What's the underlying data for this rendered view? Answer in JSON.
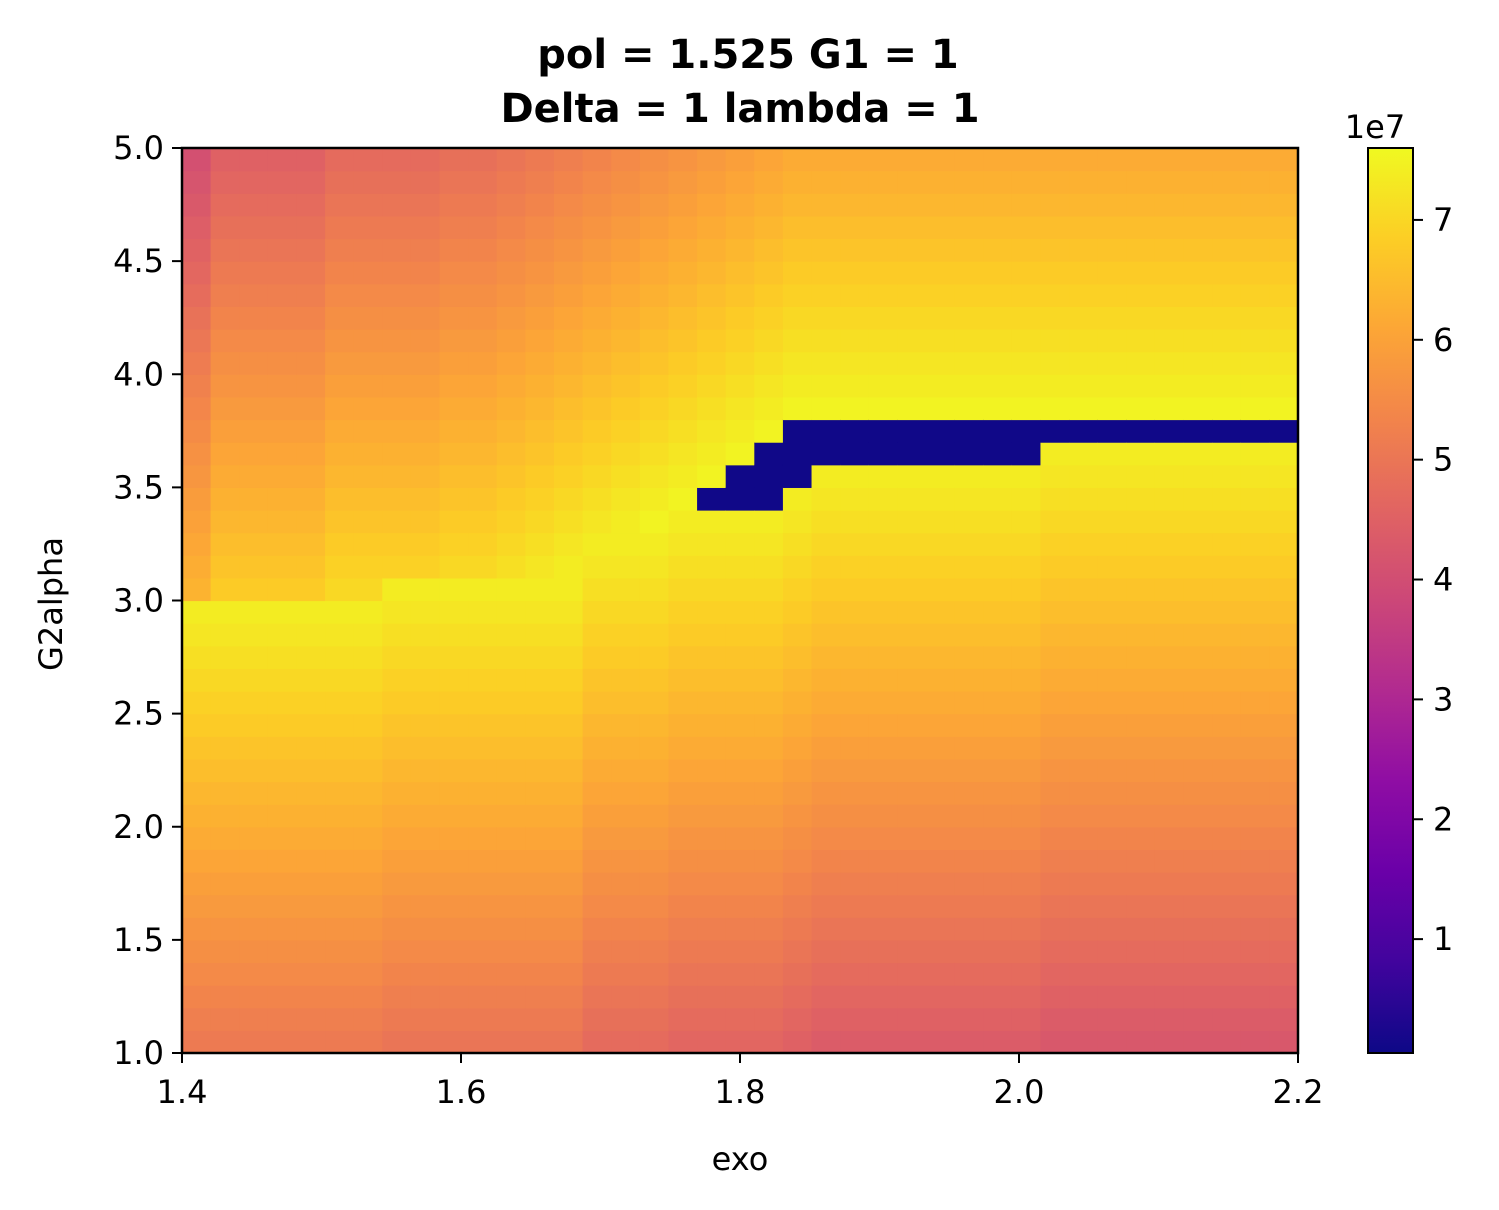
{
  "chart_data": {
    "type": "heatmap",
    "title_lines": [
      "pol = 1.525 G1 = 1",
      "Delta = 1 lambda = 1"
    ],
    "xlabel": "exo",
    "ylabel": "G2alpha",
    "xlim": [
      1.4,
      2.2
    ],
    "ylim": [
      1.0,
      5.0
    ],
    "x_ticks": [
      "1.4",
      "1.6",
      "1.8",
      "2.0",
      "2.2"
    ],
    "y_ticks": [
      "1.0",
      "1.5",
      "2.0",
      "2.5",
      "3.0",
      "3.5",
      "4.0",
      "4.5",
      "5.0"
    ],
    "colorbar": {
      "colormap": "plasma",
      "range": [
        0.05,
        7.6
      ],
      "ticks": [
        "1",
        "2",
        "3",
        "4",
        "5",
        "6",
        "7"
      ],
      "offset_label": "1e7"
    },
    "grid": false,
    "grid_shape": {
      "cols": 39,
      "rows": 40
    },
    "region_boundaries": {
      "bottom_band_top_by_column": [
        20,
        20,
        20,
        20,
        20,
        20,
        20,
        21,
        21,
        21,
        21,
        21,
        21,
        21,
        21,
        21,
        21,
        21,
        21,
        21,
        21,
        21,
        21,
        22,
        22,
        22,
        22,
        22,
        22,
        22,
        22,
        22,
        22,
        22,
        22,
        22,
        22,
        22,
        22
      ],
      "upper_wedge_bottom_by_column": [
        12,
        14,
        14,
        14,
        14,
        16,
        16,
        16,
        16,
        17,
        17,
        18,
        19,
        20,
        21,
        22,
        23,
        24,
        25,
        26,
        27,
        28,
        28,
        28,
        28,
        28,
        28,
        28,
        28,
        28,
        28,
        28,
        28,
        28,
        28,
        28,
        28,
        28,
        28
      ],
      "bottom_band_top_overrides": {
        "14": 23,
        "15": 23,
        "16": 23,
        "17": 24,
        "18": 24,
        "19": 24,
        "20": 24,
        "21": 25,
        "22": 26,
        "23": 26,
        "24": 26,
        "25": 26,
        "26": 26,
        "27": 26,
        "28": 26,
        "29": 26,
        "30": 27,
        "31": 27,
        "32": 27,
        "33": 27,
        "34": 27,
        "35": 27,
        "36": 27,
        "37": 27,
        "38": 27
      }
    }
  }
}
